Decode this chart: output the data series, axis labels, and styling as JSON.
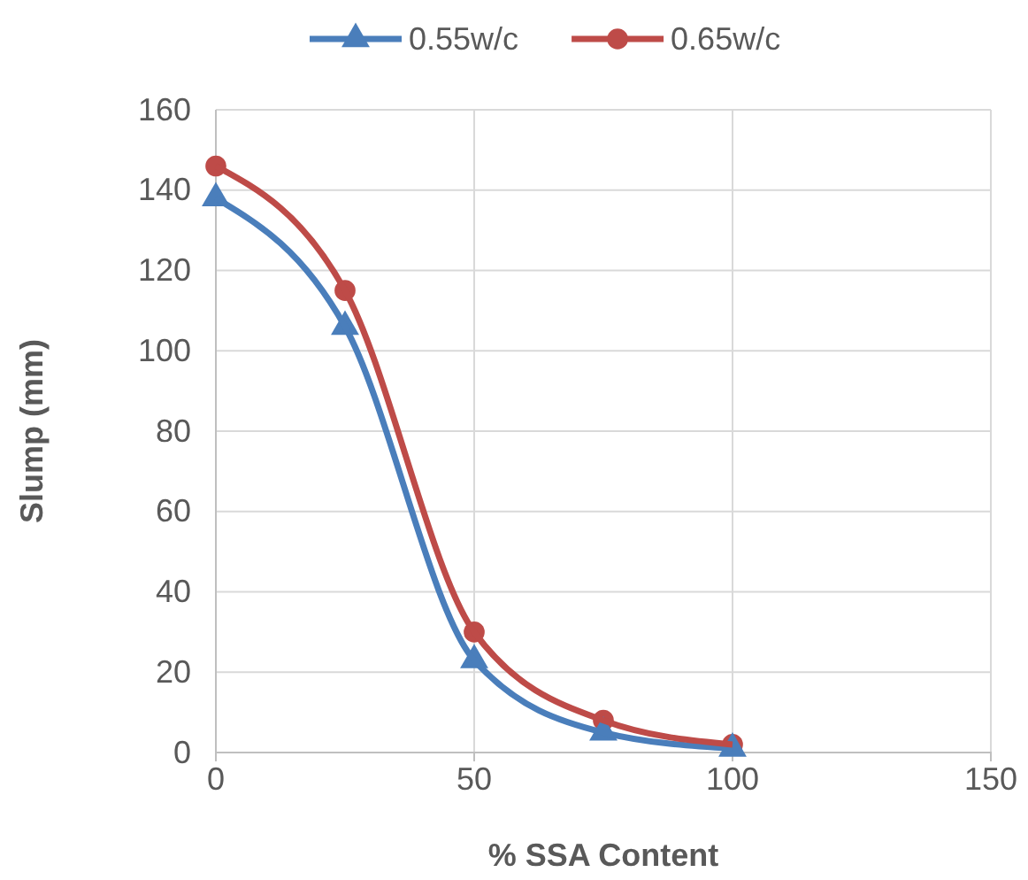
{
  "chart_data": {
    "type": "line",
    "xlabel": "% SSA Content",
    "ylabel": "Slump (mm)",
    "xlim": [
      0,
      150
    ],
    "xticks": [
      0,
      50,
      100,
      150
    ],
    "ylim": [
      0,
      160
    ],
    "yticks": [
      0,
      20,
      40,
      60,
      80,
      100,
      120,
      140,
      160
    ],
    "grid": true,
    "legend": "top",
    "line_style": "solid",
    "series": [
      {
        "name": "0.55w/c",
        "color": "#4a7ebb",
        "marker": "triangle",
        "x": [
          0,
          25,
          50,
          75,
          100
        ],
        "values": [
          138,
          106,
          23,
          5,
          1
        ]
      },
      {
        "name": "0.65w/c",
        "color": "#be4b48",
        "marker": "circle",
        "x": [
          0,
          25,
          50,
          75,
          100
        ],
        "values": [
          146,
          115,
          30,
          8,
          2
        ]
      }
    ]
  }
}
